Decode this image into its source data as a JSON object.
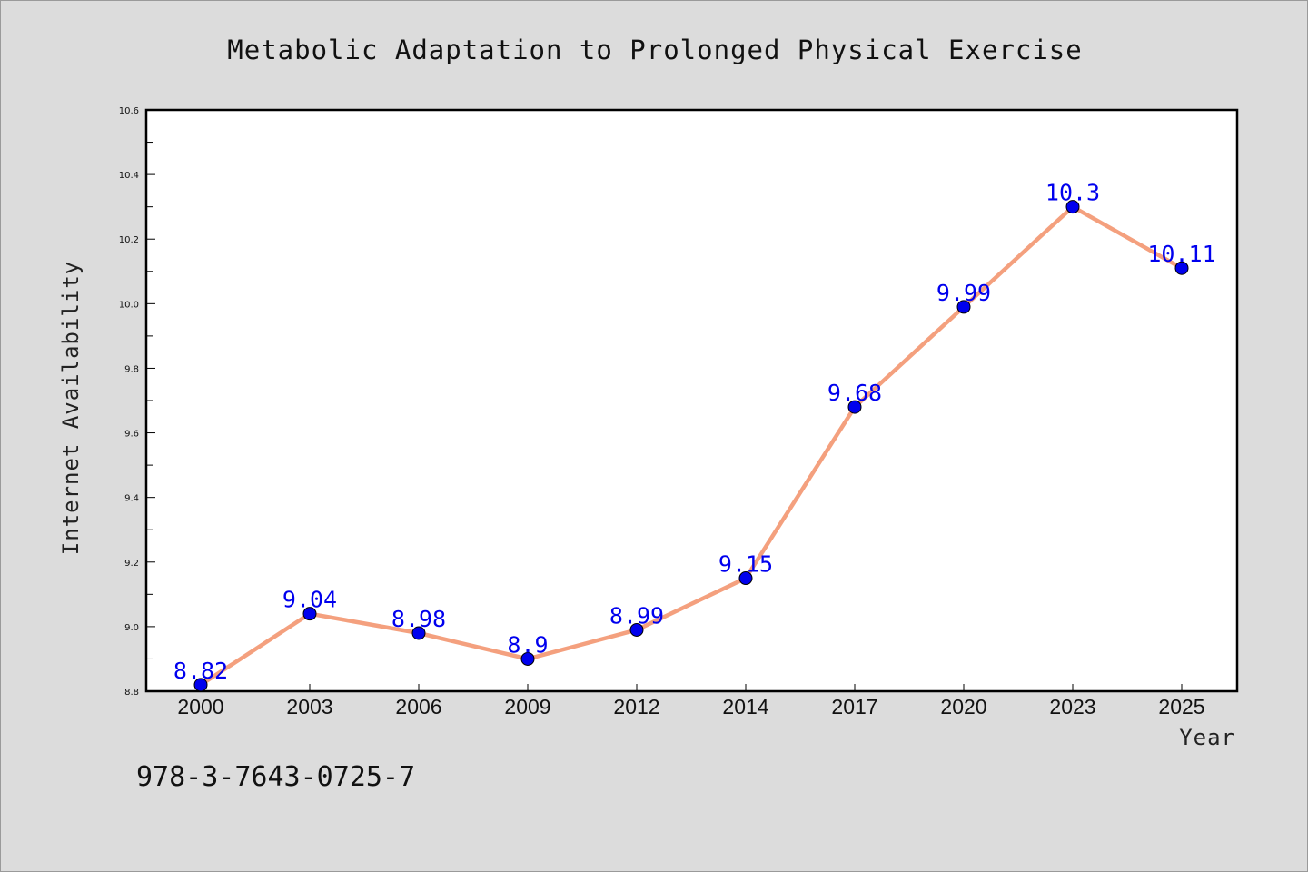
{
  "chart_data": {
    "type": "line",
    "title": "Metabolic Adaptation to Prolonged Physical Exercise",
    "xlabel": "Year",
    "ylabel": "Internet Availability",
    "categories": [
      "2000",
      "2003",
      "2006",
      "2009",
      "2012",
      "2014",
      "2017",
      "2020",
      "2023",
      "2025"
    ],
    "values": [
      8.82,
      9.04,
      8.98,
      8.9,
      8.99,
      9.15,
      9.68,
      9.99,
      10.3,
      10.11
    ],
    "data_labels": [
      "8.82",
      "9.04",
      "8.98",
      "8.9",
      "8.99",
      "9.15",
      "9.68",
      "9.99",
      "10.3",
      "10.11"
    ],
    "ylim": [
      8.8,
      10.6
    ],
    "yticks": [
      "8.8",
      "9.0",
      "9.2",
      "9.4",
      "9.6",
      "9.8",
      "10.0",
      "10.2",
      "10.4",
      "10.6"
    ],
    "ytick_values": [
      8.8,
      9.0,
      9.2,
      9.4,
      9.6,
      9.8,
      10.0,
      10.2,
      10.4,
      10.6
    ],
    "grid": false,
    "legend": "none",
    "colors": {
      "line": "#f4a07e",
      "marker": "#0000ee",
      "label": "#0000ee",
      "background": "#dcdcdc",
      "plot_background": "#ffffff"
    }
  },
  "footer": {
    "isbn": "978-3-7643-0725-7"
  }
}
